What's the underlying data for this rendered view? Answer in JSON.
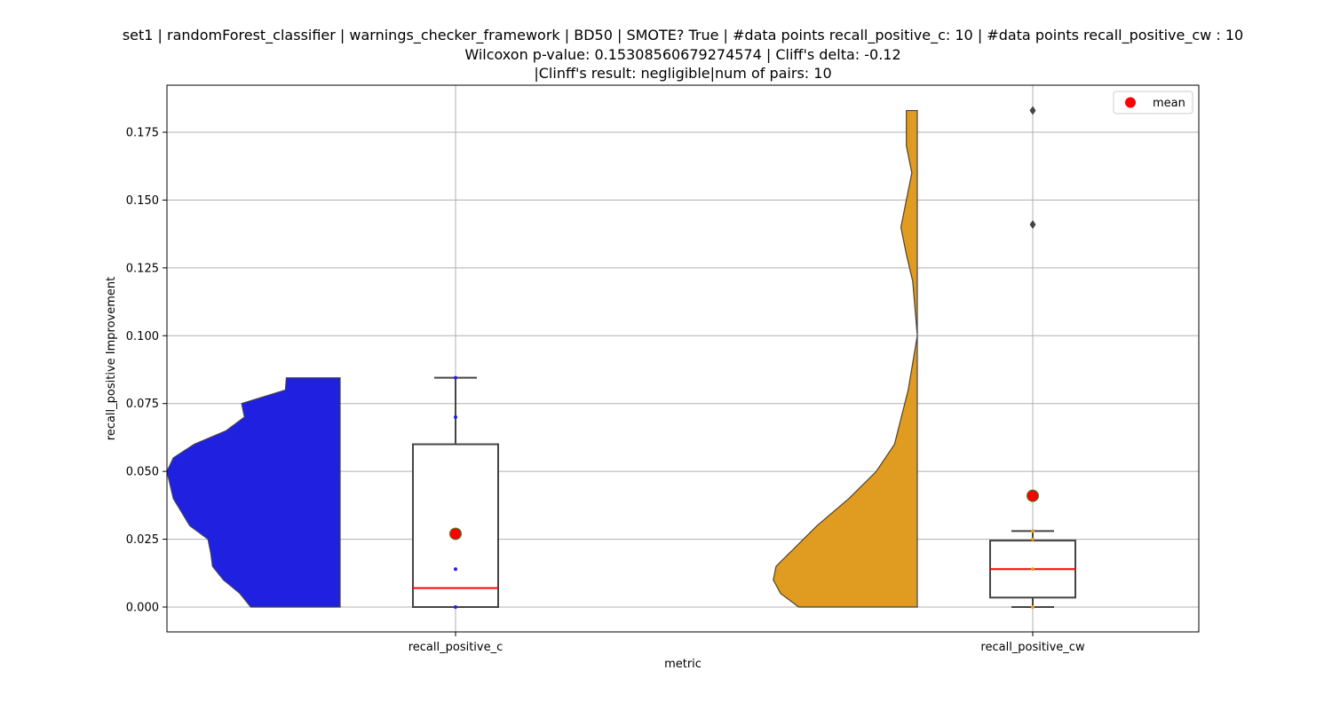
{
  "chart_data": {
    "type": "violin_box",
    "title_lines": [
      "set1 | randomForest_classifier | warnings_checker_framework | BD50 | SMOTE? True | #data points recall_positive_c: 10 | #data points recall_positive_cw : 10",
      "Wilcoxon p-value: 0.15308560679274574 | Cliff's delta: -0.12",
      "|Clinff's result: negligible|num of pairs: 10"
    ],
    "xlabel": "metric",
    "ylabel": "recall_positive Improvement",
    "ylim": [
      -0.009,
      0.192
    ],
    "yticks": [
      "0.000",
      "0.025",
      "0.050",
      "0.075",
      "0.100",
      "0.125",
      "0.150",
      "0.175"
    ],
    "grid": true,
    "legend": {
      "position": "top-right",
      "label": "mean",
      "color": "#ff0000"
    },
    "categories": [
      "recall_positive_c",
      "recall_positive_cw"
    ],
    "series": [
      {
        "category": "recall_positive_c",
        "color": "#2020e0",
        "violin": [
          [
            0.0,
            0.098
          ],
          [
            0.005,
            0.11
          ],
          [
            0.01,
            0.128
          ],
          [
            0.015,
            0.14
          ],
          [
            0.02,
            0.142
          ],
          [
            0.025,
            0.145
          ],
          [
            0.03,
            0.165
          ],
          [
            0.04,
            0.183
          ],
          [
            0.05,
            0.19
          ],
          [
            0.055,
            0.183
          ],
          [
            0.06,
            0.16
          ],
          [
            0.065,
            0.125
          ],
          [
            0.07,
            0.105
          ],
          [
            0.075,
            0.108
          ],
          [
            0.08,
            0.06
          ],
          [
            0.0845,
            0.059
          ]
        ],
        "box": {
          "q1": 0.0,
          "median": 0.007,
          "q3": 0.06,
          "whisker_low": 0.0,
          "whisker_high": 0.0845
        },
        "points": [
          0.0,
          0.014,
          0.07,
          0.0845
        ],
        "mean": 0.027,
        "outliers": []
      },
      {
        "category": "recall_positive_cw",
        "color": "#e09c20",
        "violin": [
          [
            0.0,
            0.13
          ],
          [
            0.005,
            0.15
          ],
          [
            0.01,
            0.158
          ],
          [
            0.015,
            0.155
          ],
          [
            0.02,
            0.14
          ],
          [
            0.03,
            0.11
          ],
          [
            0.04,
            0.075
          ],
          [
            0.05,
            0.045
          ],
          [
            0.06,
            0.025
          ],
          [
            0.08,
            0.01
          ],
          [
            0.1,
            0.0
          ],
          [
            0.12,
            0.005
          ],
          [
            0.13,
            0.012
          ],
          [
            0.14,
            0.018
          ],
          [
            0.15,
            0.012
          ],
          [
            0.16,
            0.006
          ],
          [
            0.17,
            0.012
          ],
          [
            0.183,
            0.012
          ]
        ],
        "box": {
          "q1": 0.0035,
          "median": 0.014,
          "q3": 0.0245,
          "whisker_low": 0.0,
          "whisker_high": 0.028
        },
        "points": [
          0.0,
          0.014,
          0.025,
          0.028
        ],
        "mean": 0.041,
        "outliers": [
          0.141,
          0.183
        ]
      }
    ]
  }
}
